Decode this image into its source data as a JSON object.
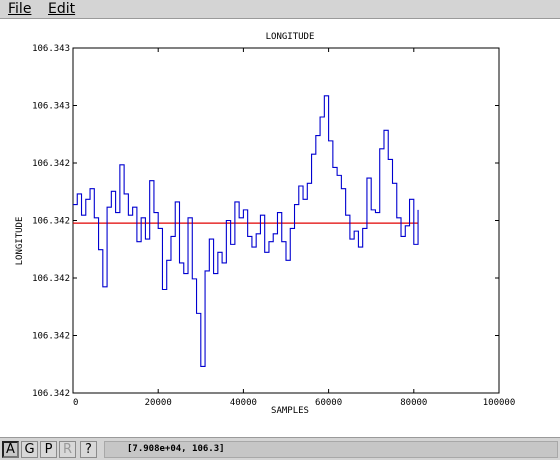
{
  "menu": {
    "file": "File",
    "edit": "Edit"
  },
  "toolbar": {
    "a": "A",
    "g": "G",
    "p": "P",
    "r": "R",
    "help": "?"
  },
  "status": {
    "coord": "[7.908e+04, 106.3]"
  },
  "colors": {
    "series": "#0000d0",
    "mean": "#e00000",
    "axis": "#000000"
  },
  "chart_data": {
    "type": "line",
    "title": "LONGITUDE",
    "xlabel": "SAMPLES",
    "ylabel": "LONGITUDE",
    "xlim": [
      0,
      100000
    ],
    "x_ticks": [
      "0",
      "20000",
      "40000",
      "60000",
      "80000",
      "100000"
    ],
    "y_ticks": [
      "106.342",
      "106.342",
      "106.342",
      "106.342",
      "106.342",
      "106.343",
      "106.343"
    ],
    "grid": false,
    "series": [
      {
        "x": [
          0,
          1000,
          2000,
          3000,
          4000,
          5000,
          6000,
          7000,
          8000,
          9000,
          10000,
          11000,
          12000,
          13000,
          14000,
          15000,
          16000,
          17000,
          18000,
          19000,
          20000,
          21000,
          22000,
          23000,
          24000,
          25000,
          26000,
          27000,
          28000,
          29000,
          30000,
          31000,
          32000,
          33000,
          34000,
          35000,
          36000,
          37000,
          38000,
          39000,
          40000,
          41000,
          42000,
          43000,
          44000,
          45000,
          46000,
          47000,
          48000,
          49000,
          50000,
          51000,
          52000,
          53000,
          54000,
          55000,
          56000,
          57000,
          58000,
          59000,
          60000,
          61000,
          62000,
          63000,
          64000,
          65000,
          66000,
          67000,
          68000,
          69000,
          70000,
          71000,
          72000,
          73000,
          74000,
          75000,
          76000,
          77000,
          78000,
          79000,
          80000,
          81000
        ],
        "y": [
          0.35,
          0.55,
          0.15,
          0.45,
          0.65,
          0.1,
          -0.5,
          -1.2,
          0.3,
          0.6,
          0.2,
          1.1,
          0.55,
          0.15,
          0.3,
          -0.35,
          0.1,
          -0.3,
          0.8,
          0.2,
          -0.1,
          -1.25,
          -0.7,
          -0.25,
          0.4,
          -0.75,
          -0.95,
          0.1,
          -1.05,
          -1.7,
          -2.7,
          -0.9,
          -0.3,
          -0.95,
          -0.55,
          -0.75,
          0.05,
          -0.4,
          0.4,
          0.1,
          0.25,
          -0.25,
          -0.45,
          -0.2,
          0.15,
          -0.55,
          -0.35,
          -0.2,
          0.2,
          -0.35,
          -0.7,
          -0.1,
          0.35,
          0.7,
          0.45,
          0.75,
          1.3,
          1.65,
          2.0,
          2.4,
          1.55,
          1.05,
          0.9,
          0.65,
          0.15,
          -0.3,
          -0.15,
          -0.45,
          -0.1,
          0.85,
          0.25,
          0.2,
          1.4,
          1.75,
          1.2,
          0.75,
          0.1,
          -0.25,
          -0.05,
          0.45,
          -0.4,
          0.25
        ]
      }
    ],
    "reference_line": {
      "y": 0
    }
  }
}
